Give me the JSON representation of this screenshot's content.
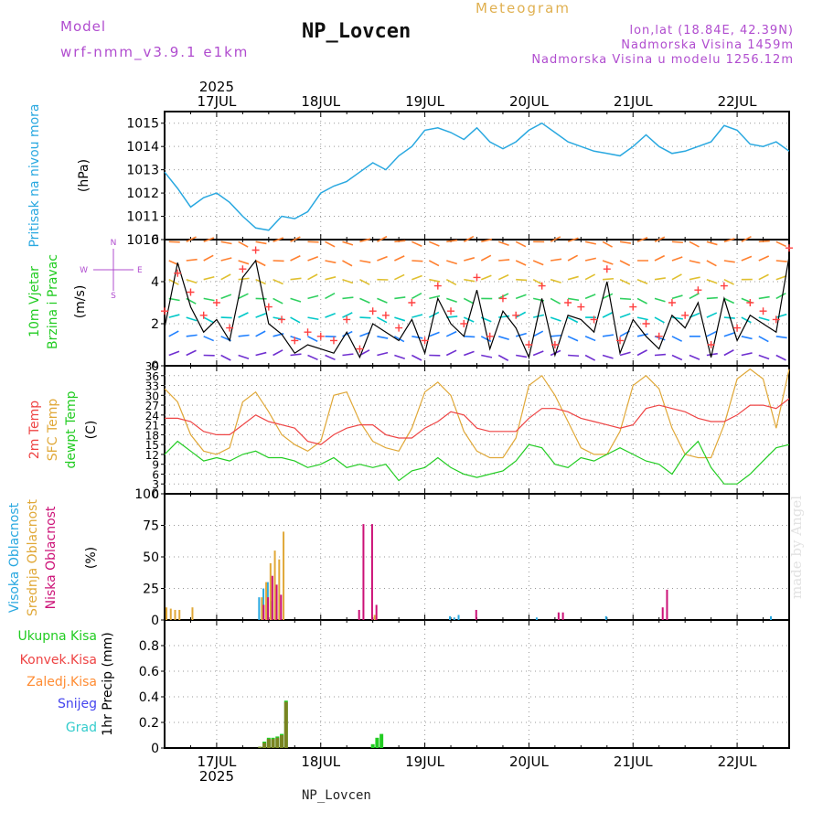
{
  "header": {
    "model_label": "Model",
    "model_version": "wrf-nmm_v3.9.1 e1km",
    "station": "NP_Lovcen",
    "meteogram_label": "Meteogram",
    "lonlat": "lon,lat (18.84E, 42.39N)",
    "elevation": "Nadmorska Visina 1459m",
    "model_elevation": "Nadmorska Visina u modelu 1256.12m"
  },
  "footer": {
    "station": "NP_Lovcen",
    "watermark": "made by Angel"
  },
  "colors": {
    "pressure": "#29a8e0",
    "wind_speed": "#000000",
    "gust": "#ff4040",
    "temp2m": "#ee4444",
    "sfc_temp": "#e0a838",
    "dewpoint": "#22cc22",
    "high_cloud": "#29a8e0",
    "mid_cloud": "#e0a838",
    "low_cloud": "#cc1177",
    "total_precip": "#22cc22",
    "conv_precip": "#ee4444",
    "frozen_precip": "#ff8c33",
    "snow": "#4444ee",
    "graupel": "#33cccc",
    "axis_text": "#000000"
  },
  "chart_data": [
    {
      "type": "line",
      "panel": "pressure",
      "ylabel": [
        "Pritisak na nivou mora",
        "(hPa)"
      ],
      "ylim": [
        1010,
        1015.5
      ],
      "yticks": [
        "1010",
        "1011",
        "1012",
        "1013",
        "1014",
        "1015"
      ],
      "x_start": "16 JUL 2025 12UTC",
      "x_end": "22 JUL 2025 12UTC",
      "x_ticks_top": [
        "17JUL",
        "18JUL",
        "19JUL",
        "20JUL",
        "21JUL",
        "22JUL"
      ],
      "year_label": "2025",
      "x_hours": [
        0,
        3,
        6,
        9,
        12,
        15,
        18,
        21,
        24,
        27,
        30,
        33,
        36,
        39,
        42,
        45,
        48,
        51,
        54,
        57,
        60,
        63,
        66,
        69,
        72,
        75,
        78,
        81,
        84,
        87,
        90,
        93,
        96,
        99,
        102,
        105,
        108,
        111,
        114,
        117,
        120,
        123,
        126,
        129,
        132,
        135,
        138,
        141,
        144
      ],
      "series": [
        {
          "values": [
            1012.9,
            1012.2,
            1011.4,
            1011.8,
            1012.0,
            1011.6,
            1011.0,
            1010.5,
            1010.4,
            1011.0,
            1010.9,
            1011.2,
            1012.0,
            1012.3,
            1012.5,
            1012.9,
            1013.3,
            1013.0,
            1013.6,
            1014.0,
            1014.7,
            1014.8,
            1014.6,
            1014.3,
            1014.8,
            1014.2,
            1013.9,
            1014.2,
            1014.7,
            1015.0,
            1014.6,
            1014.2,
            1014.0,
            1013.8,
            1013.7,
            1013.6,
            1014.0,
            1014.5,
            1014.0,
            1013.7,
            1013.8,
            1014.0,
            1014.2,
            1014.9,
            1014.7,
            1014.1,
            1014.0,
            1014.2,
            1013.8
          ]
        }
      ],
      "grid": true
    },
    {
      "type": "line",
      "panel": "wind",
      "ylabel": [
        "10m Vjetar",
        "Brzina i Pravac",
        "(m/s)"
      ],
      "direction_legend": [
        "W",
        "E",
        "N",
        "S"
      ],
      "ylim": [
        0,
        6
      ],
      "yticks": [
        "0",
        "2",
        "4",
        "6"
      ],
      "x_hours": [
        0,
        3,
        6,
        9,
        12,
        15,
        18,
        21,
        24,
        27,
        30,
        33,
        36,
        39,
        42,
        45,
        48,
        51,
        54,
        57,
        60,
        63,
        66,
        69,
        72,
        75,
        78,
        81,
        84,
        87,
        90,
        93,
        96,
        99,
        102,
        105,
        108,
        111,
        114,
        117,
        120,
        123,
        126,
        129,
        132,
        135,
        138,
        141,
        144
      ],
      "series": [
        {
          "name": "speed",
          "values": [
            1.8,
            4.9,
            2.8,
            1.6,
            2.2,
            1.2,
            4.2,
            5.0,
            2.0,
            1.5,
            0.6,
            1.0,
            0.8,
            0.6,
            1.6,
            0.4,
            2.0,
            1.6,
            1.2,
            2.2,
            0.6,
            3.2,
            2.0,
            1.4,
            3.6,
            0.8,
            2.6,
            1.8,
            0.4,
            3.2,
            0.5,
            2.4,
            2.2,
            1.6,
            4.0,
            0.6,
            2.2,
            1.4,
            0.8,
            2.4,
            1.8,
            3.0,
            0.4,
            3.2,
            1.2,
            2.4,
            2.0,
            1.6,
            5.2
          ]
        },
        {
          "name": "gust",
          "values": [
            2.6,
            4.4,
            3.5,
            2.4,
            3.0,
            1.8,
            4.6,
            5.5,
            2.8,
            2.2,
            1.2,
            1.6,
            1.4,
            1.2,
            2.2,
            0.8,
            2.6,
            2.4,
            1.8,
            3.0,
            1.2,
            3.8,
            2.6,
            2.0,
            4.2,
            1.4,
            3.2,
            2.4,
            1.0,
            3.8,
            1.0,
            3.0,
            2.8,
            2.2,
            4.6,
            1.2,
            2.8,
            2.0,
            1.4,
            3.0,
            2.4,
            3.6,
            1.0,
            3.8,
            1.8,
            3.0,
            2.6,
            2.2,
            5.6
          ]
        }
      ],
      "grid": true
    },
    {
      "type": "line",
      "panel": "temperature",
      "ylabel": [
        "2m Temp",
        "SFC Temp",
        "dewpt Temp",
        "(C)"
      ],
      "ylim": [
        0,
        39
      ],
      "yticks": [
        "0",
        "3",
        "6",
        "9",
        "12",
        "15",
        "18",
        "21",
        "24",
        "27",
        "30",
        "33",
        "36",
        "39"
      ],
      "x_hours": [
        0,
        3,
        6,
        9,
        12,
        15,
        18,
        21,
        24,
        27,
        30,
        33,
        36,
        39,
        42,
        45,
        48,
        51,
        54,
        57,
        60,
        63,
        66,
        69,
        72,
        75,
        78,
        81,
        84,
        87,
        90,
        93,
        96,
        99,
        102,
        105,
        108,
        111,
        114,
        117,
        120,
        123,
        126,
        129,
        132,
        135,
        138,
        141,
        144
      ],
      "series": [
        {
          "name": "2m Temp",
          "values": [
            23,
            23,
            22,
            19,
            18,
            18,
            21,
            24,
            22,
            21,
            20,
            16,
            15,
            18,
            20,
            21,
            21,
            18,
            17,
            17,
            20,
            22,
            25,
            24,
            20,
            19,
            19,
            19,
            23,
            26,
            26,
            25,
            23,
            22,
            21,
            20,
            21,
            26,
            27,
            26,
            25,
            23,
            22,
            22,
            24,
            27,
            27,
            26,
            29
          ]
        },
        {
          "name": "SFC Temp",
          "values": [
            32,
            28,
            18,
            13,
            12,
            14,
            28,
            31,
            25,
            18,
            15,
            13,
            16,
            30,
            31,
            22,
            16,
            14,
            13,
            20,
            31,
            34,
            30,
            19,
            13,
            11,
            11,
            17,
            33,
            36,
            30,
            22,
            14,
            12,
            12,
            19,
            33,
            36,
            32,
            20,
            12,
            11,
            11,
            21,
            35,
            38,
            35,
            20,
            38
          ]
        },
        {
          "name": "dewpt Temp",
          "values": [
            12,
            16,
            13,
            10,
            11,
            10,
            12,
            13,
            11,
            11,
            10,
            8,
            9,
            11,
            8,
            9,
            8,
            9,
            4,
            7,
            8,
            11,
            8,
            6,
            5,
            6,
            7,
            10,
            15,
            14,
            9,
            8,
            11,
            10,
            12,
            14,
            12,
            10,
            9,
            6,
            12,
            16,
            8,
            3,
            3,
            6,
            10,
            14,
            15
          ]
        }
      ],
      "grid": true
    },
    {
      "type": "bar",
      "panel": "clouds",
      "ylabel": [
        "Visoka Oblacnost",
        "Srednja Oblacnost",
        "Niska Oblacnost",
        "(%)"
      ],
      "ylim": [
        0,
        100
      ],
      "yticks": [
        "0",
        "25",
        "50",
        "75",
        "100"
      ],
      "series": [
        {
          "name": "Visoka Oblacnost",
          "points": [
            [
              22,
              18
            ],
            [
              23,
              25
            ],
            [
              24,
              30
            ],
            [
              25,
              15
            ],
            [
              66,
              3
            ],
            [
              67,
              2
            ],
            [
              68,
              4
            ],
            [
              86,
              2
            ],
            [
              102,
              3
            ],
            [
              140,
              3
            ]
          ]
        },
        {
          "name": "Srednja Oblacnost",
          "points": [
            [
              0,
              10
            ],
            [
              1,
              9
            ],
            [
              2,
              8
            ],
            [
              3,
              8
            ],
            [
              6,
              10
            ],
            [
              22,
              18
            ],
            [
              23,
              30
            ],
            [
              24,
              45
            ],
            [
              25,
              55
            ],
            [
              26,
              48
            ],
            [
              27,
              70
            ],
            [
              48,
              4
            ]
          ]
        },
        {
          "name": "Niska Oblacnost",
          "points": [
            [
              22,
              12
            ],
            [
              23,
              18
            ],
            [
              24,
              35
            ],
            [
              25,
              28
            ],
            [
              26,
              20
            ],
            [
              44,
              8
            ],
            [
              45,
              76
            ],
            [
              47,
              76
            ],
            [
              48,
              12
            ],
            [
              71,
              8
            ],
            [
              90,
              6
            ],
            [
              91,
              6
            ],
            [
              114,
              10
            ],
            [
              115,
              24
            ]
          ]
        }
      ],
      "grid": true
    },
    {
      "type": "bar",
      "panel": "precip",
      "ylabel": [
        "Ukupna Kisa",
        "Konvek.Kisa",
        "Zaledj.Kisa",
        "Snijeg",
        "Grad",
        "1hr Precip (mm)"
      ],
      "ylim": [
        0,
        1
      ],
      "yticks": [
        "0",
        "0.2",
        "0.4",
        "0.6",
        "0.8"
      ],
      "x_ticks_bottom": [
        "17JUL",
        "18JUL",
        "19JUL",
        "20JUL",
        "21JUL",
        "22JUL"
      ],
      "year_label": "2025",
      "series": [
        {
          "name": "Ukupna Kisa",
          "points": [
            [
              22,
              0.01
            ],
            [
              23,
              0.05
            ],
            [
              24,
              0.08
            ],
            [
              25,
              0.08
            ],
            [
              26,
              0.09
            ],
            [
              27,
              0.11
            ],
            [
              28,
              0.37
            ],
            [
              48,
              0.03
            ],
            [
              49,
              0.08
            ],
            [
              50,
              0.11
            ]
          ]
        },
        {
          "name": "Konvek.Kisa",
          "points": [
            [
              22,
              0.01
            ],
            [
              23,
              0.04
            ],
            [
              24,
              0.07
            ],
            [
              25,
              0.07
            ],
            [
              26,
              0.08
            ],
            [
              27,
              0.1
            ],
            [
              28,
              0.36
            ]
          ]
        }
      ],
      "grid": true
    }
  ]
}
